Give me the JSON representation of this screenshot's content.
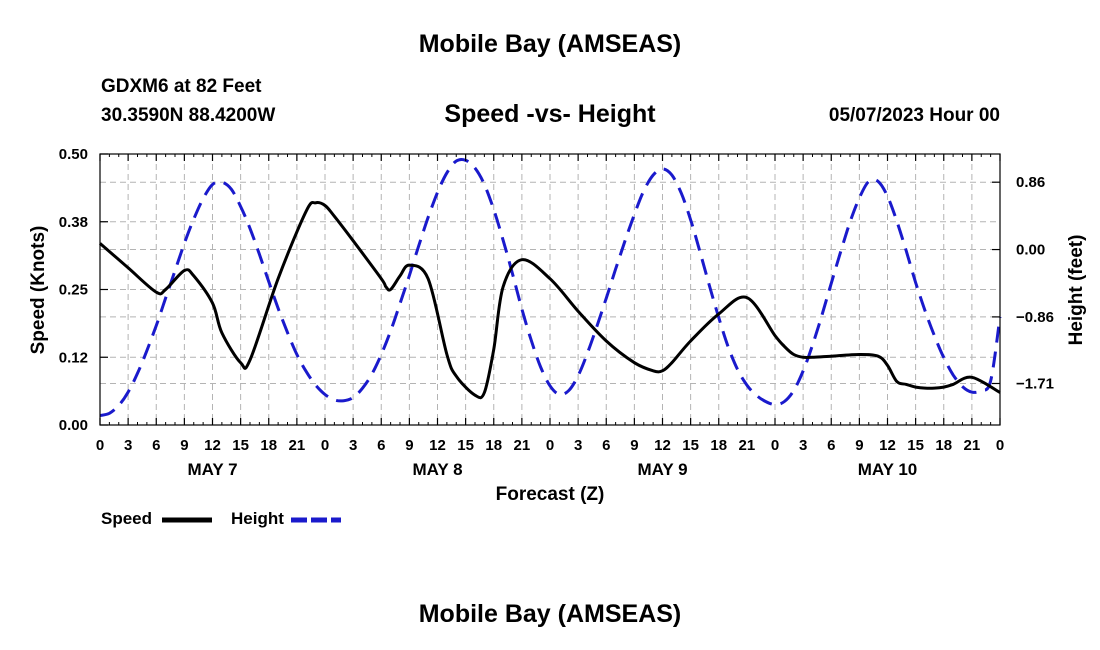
{
  "page": {
    "title": "Mobile Bay (AMSEAS)",
    "footer_title": "Mobile Bay (AMSEAS)",
    "station": "GDXM6 at 82 Feet",
    "coords": "30.3590N  88.4200W",
    "subtitle": "Speed -vs- Height",
    "run_time": "05/07/2023 Hour 00"
  },
  "legend": {
    "speed_label": "Speed",
    "height_label": "Height"
  },
  "colors": {
    "speed": "#000000",
    "height": "#1a1acc",
    "grid": "#b4b4b4"
  },
  "chart_data": {
    "type": "line",
    "title": "Speed -vs- Height",
    "xlabel": "Forecast (Z)",
    "ylabel": "Speed (Knots)",
    "y2label": "Height (feet)",
    "xlim": [
      0,
      96
    ],
    "ylim": [
      0,
      0.5
    ],
    "y2lim": [
      -2.24,
      1.22
    ],
    "x_tick_values": [
      0,
      3,
      6,
      9,
      12,
      15,
      18,
      21,
      24,
      27,
      30,
      33,
      36,
      39,
      42,
      45,
      48,
      51,
      54,
      57,
      60,
      63,
      66,
      69,
      72,
      75,
      78,
      81,
      84,
      87,
      90,
      93,
      96
    ],
    "x_tick_labels": [
      "0",
      "3",
      "6",
      "9",
      "12",
      "15",
      "18",
      "21",
      "0",
      "3",
      "6",
      "9",
      "12",
      "15",
      "18",
      "21",
      "0",
      "3",
      "6",
      "9",
      "12",
      "15",
      "18",
      "21",
      "0",
      "3",
      "6",
      "9",
      "12",
      "15",
      "18",
      "21",
      "0"
    ],
    "day_labels": [
      {
        "x": 12,
        "label": "MAY 7"
      },
      {
        "x": 36,
        "label": "MAY 8"
      },
      {
        "x": 60,
        "label": "MAY 9"
      },
      {
        "x": 84,
        "label": "MAY 10"
      }
    ],
    "y_tick_values": [
      0.0,
      0.125,
      0.25,
      0.375,
      0.5
    ],
    "y_tick_labels": [
      "0.00",
      "0.12",
      "0.25",
      "0.38",
      "0.50"
    ],
    "y2_tick_values": [
      -1.71,
      -0.86,
      0.0,
      0.86
    ],
    "y2_tick_labels": [
      "−1.71",
      "−0.86",
      "0.00",
      "0.86"
    ],
    "grid": true,
    "series": [
      {
        "name": "Speed",
        "axis": "left",
        "style": "solid",
        "x": [
          0,
          3,
          6,
          7,
          9,
          10,
          12,
          13,
          15,
          16,
          19,
          22,
          23,
          24,
          25,
          27,
          30,
          30.5,
          31,
          32,
          33,
          35,
          37,
          38,
          40,
          41,
          42,
          43,
          45,
          48,
          51,
          54,
          57,
          59,
          60,
          61,
          63,
          66,
          69,
          72,
          73,
          74,
          75,
          76,
          78,
          81,
          83,
          84,
          85,
          86,
          87,
          88,
          89,
          90,
          91,
          93,
          96
        ],
        "y": [
          0.335,
          0.29,
          0.245,
          0.25,
          0.285,
          0.275,
          0.225,
          0.17,
          0.115,
          0.12,
          0.27,
          0.395,
          0.41,
          0.405,
          0.385,
          0.34,
          0.27,
          0.255,
          0.25,
          0.275,
          0.295,
          0.27,
          0.13,
          0.09,
          0.055,
          0.06,
          0.14,
          0.255,
          0.305,
          0.27,
          0.21,
          0.155,
          0.115,
          0.1,
          0.1,
          0.115,
          0.155,
          0.205,
          0.235,
          0.165,
          0.145,
          0.13,
          0.125,
          0.125,
          0.127,
          0.13,
          0.127,
          0.11,
          0.08,
          0.075,
          0.07,
          0.068,
          0.068,
          0.07,
          0.075,
          0.088,
          0.06
        ]
      },
      {
        "name": "Height",
        "axis": "right",
        "style": "dashed",
        "x": [
          0,
          1,
          2,
          3,
          4,
          5,
          6,
          7,
          8,
          9,
          10,
          11,
          12,
          13,
          14,
          15,
          16,
          17,
          18,
          19,
          20,
          21,
          22,
          23,
          24,
          25,
          26,
          27,
          28,
          29,
          30,
          31,
          32,
          33,
          34,
          35,
          36,
          37,
          38,
          39,
          40,
          41,
          42,
          43,
          44,
          45,
          46,
          47,
          48,
          49,
          50,
          51,
          52,
          53,
          54,
          55,
          56,
          57,
          58,
          59,
          60,
          61,
          62,
          63,
          64,
          65,
          66,
          67,
          68,
          69,
          70,
          71,
          72,
          73,
          74,
          75,
          76,
          77,
          78,
          79,
          80,
          81,
          82,
          83,
          84,
          85,
          86,
          87,
          88,
          89,
          90,
          91,
          92,
          93,
          94,
          95,
          96
        ],
        "y": [
          -2.12,
          -2.09,
          -1.99,
          -1.82,
          -1.58,
          -1.29,
          -0.97,
          -0.62,
          -0.27,
          0.08,
          0.39,
          0.65,
          0.83,
          0.86,
          0.77,
          0.55,
          0.27,
          -0.06,
          -0.41,
          -0.75,
          -1.06,
          -1.34,
          -1.56,
          -1.73,
          -1.85,
          -1.92,
          -1.93,
          -1.89,
          -1.77,
          -1.59,
          -1.34,
          -1.04,
          -0.69,
          -0.33,
          0.05,
          0.41,
          0.73,
          0.98,
          1.13,
          1.14,
          1.04,
          0.83,
          0.51,
          0.12,
          -0.31,
          -0.76,
          -1.16,
          -1.5,
          -1.74,
          -1.85,
          -1.8,
          -1.61,
          -1.32,
          -0.98,
          -0.62,
          -0.25,
          0.11,
          0.45,
          0.75,
          0.95,
          1.03,
          0.95,
          0.72,
          0.38,
          -0.03,
          -0.46,
          -0.87,
          -1.24,
          -1.53,
          -1.73,
          -1.86,
          -1.94,
          -1.98,
          -1.94,
          -1.8,
          -1.55,
          -1.22,
          -0.84,
          -0.43,
          -0.03,
          0.35,
          0.66,
          0.87,
          0.87,
          0.68,
          0.36,
          -0.02,
          -0.42,
          -0.78,
          -1.1,
          -1.38,
          -1.6,
          -1.75,
          -1.82,
          -1.8,
          -1.68,
          -0.86
        ]
      }
    ]
  }
}
